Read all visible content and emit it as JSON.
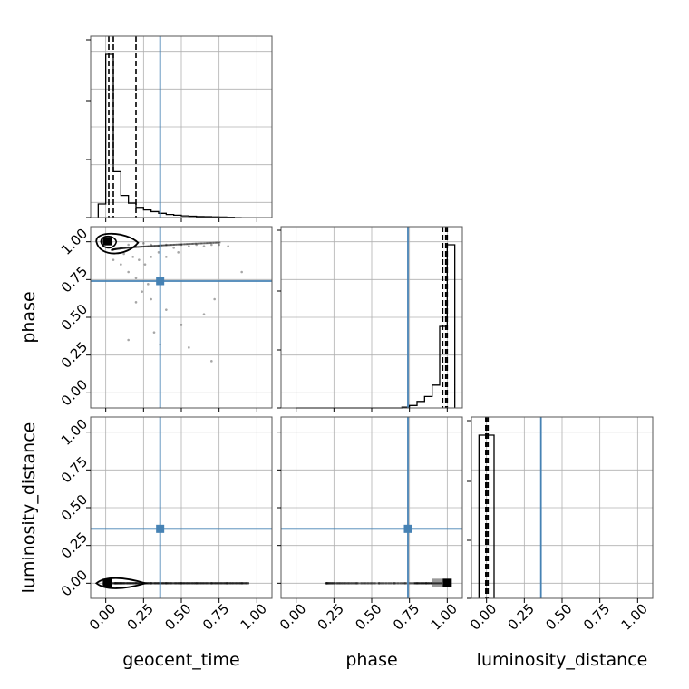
{
  "chart_data": {
    "type": "corner",
    "parameters": [
      "geocent_time",
      "phase",
      "luminosity_distance"
    ],
    "axis_ticks": [
      0.0,
      0.25,
      0.5,
      0.75,
      1.0
    ],
    "tick_labels": [
      "0.00",
      "0.25",
      "0.50",
      "0.75",
      "1.00"
    ],
    "xlim": [
      -0.1,
      1.1
    ],
    "ylim": [
      -0.1,
      1.1
    ],
    "grid": true,
    "colors": {
      "truth": "#4682b4",
      "hist": "#000000",
      "grid": "#b0b0b0",
      "points": "#000000"
    },
    "truth_values": {
      "geocent_time": 0.36,
      "phase": 0.74,
      "luminosity_distance": 0.36
    },
    "histograms": [
      {
        "parameter": "geocent_time",
        "bin_edges": [
          -0.05,
          0.0,
          0.05,
          0.1,
          0.15,
          0.2,
          0.25,
          0.3,
          0.35,
          0.4,
          0.45,
          0.5,
          0.55,
          0.6,
          0.65,
          0.7,
          0.75,
          0.8,
          0.85,
          0.9
        ],
        "counts": [
          0.08,
          0.96,
          0.27,
          0.13,
          0.085,
          0.06,
          0.045,
          0.035,
          0.025,
          0.018,
          0.014,
          0.01,
          0.008,
          0.006,
          0.005,
          0.004,
          0.003,
          0.002,
          0.0
        ],
        "quantiles": [
          0.02,
          0.05,
          0.2
        ]
      },
      {
        "parameter": "phase",
        "bin_edges": [
          0.0,
          0.7,
          0.75,
          0.8,
          0.85,
          0.9,
          0.95,
          1.0,
          1.05
        ],
        "counts": [
          0.0,
          0.005,
          0.015,
          0.04,
          0.07,
          0.14,
          0.5,
          1.0
        ],
        "quantiles": [
          0.97,
          0.99,
          1.0
        ]
      },
      {
        "parameter": "luminosity_distance",
        "bin_edges": [
          -0.05,
          0.0,
          0.05
        ],
        "counts": [
          1.0,
          1.0
        ],
        "quantiles": [
          -0.005,
          0.0,
          0.01
        ]
      }
    ],
    "scatter_panels": [
      {
        "x": "geocent_time",
        "y": "phase",
        "points": [
          [
            0.05,
            0.97
          ],
          [
            0.1,
            0.96
          ],
          [
            0.15,
            0.98
          ],
          [
            0.2,
            0.97
          ],
          [
            0.25,
            0.99
          ],
          [
            0.3,
            0.98
          ],
          [
            0.35,
            0.97
          ],
          [
            0.4,
            0.98
          ],
          [
            0.45,
            0.96
          ],
          [
            0.5,
            0.98
          ],
          [
            0.55,
            0.97
          ],
          [
            0.6,
            0.98
          ],
          [
            0.65,
            0.97
          ],
          [
            0.7,
            0.98
          ],
          [
            0.12,
            0.92
          ],
          [
            0.18,
            0.9
          ],
          [
            0.22,
            0.88
          ],
          [
            0.26,
            0.85
          ],
          [
            0.3,
            0.9
          ],
          [
            0.35,
            0.93
          ],
          [
            0.15,
            0.8
          ],
          [
            0.2,
            0.76
          ],
          [
            0.28,
            0.72
          ],
          [
            0.1,
            0.85
          ],
          [
            0.05,
            0.88
          ],
          [
            0.4,
            0.9
          ],
          [
            0.48,
            0.93
          ],
          [
            0.24,
            0.67
          ],
          [
            0.2,
            0.6
          ],
          [
            0.3,
            0.62
          ],
          [
            0.4,
            0.55
          ],
          [
            0.32,
            0.4
          ],
          [
            0.36,
            0.32
          ],
          [
            0.15,
            0.35
          ],
          [
            0.5,
            0.45
          ],
          [
            0.55,
            0.3
          ],
          [
            0.72,
            0.62
          ],
          [
            0.65,
            0.52
          ],
          [
            0.9,
            0.8
          ],
          [
            0.81,
            0.97
          ],
          [
            0.75,
            0.98
          ],
          [
            0.7,
            0.21
          ]
        ],
        "density_mode": [
          0.01,
          1.0
        ]
      },
      {
        "x": "geocent_time",
        "y": "luminosity_distance",
        "points": [
          [
            0.05,
            0.0
          ],
          [
            0.1,
            0.0
          ],
          [
            0.2,
            0.0
          ],
          [
            0.3,
            0.0
          ],
          [
            0.4,
            0.0
          ],
          [
            0.5,
            0.0
          ],
          [
            0.6,
            0.0
          ],
          [
            0.7,
            0.0
          ],
          [
            0.8,
            0.0
          ],
          [
            0.9,
            0.0
          ]
        ],
        "density_mode": [
          0.01,
          0.0
        ]
      },
      {
        "x": "phase",
        "y": "luminosity_distance",
        "points": [
          [
            0.2,
            0.0
          ],
          [
            0.4,
            0.0
          ],
          [
            0.55,
            0.0
          ],
          [
            0.65,
            0.0
          ],
          [
            0.72,
            0.0
          ],
          [
            0.8,
            0.0
          ],
          [
            0.86,
            0.0
          ],
          [
            0.9,
            0.0
          ],
          [
            0.93,
            0.0
          ]
        ],
        "density_mode": [
          1.0,
          0.0
        ]
      }
    ]
  }
}
